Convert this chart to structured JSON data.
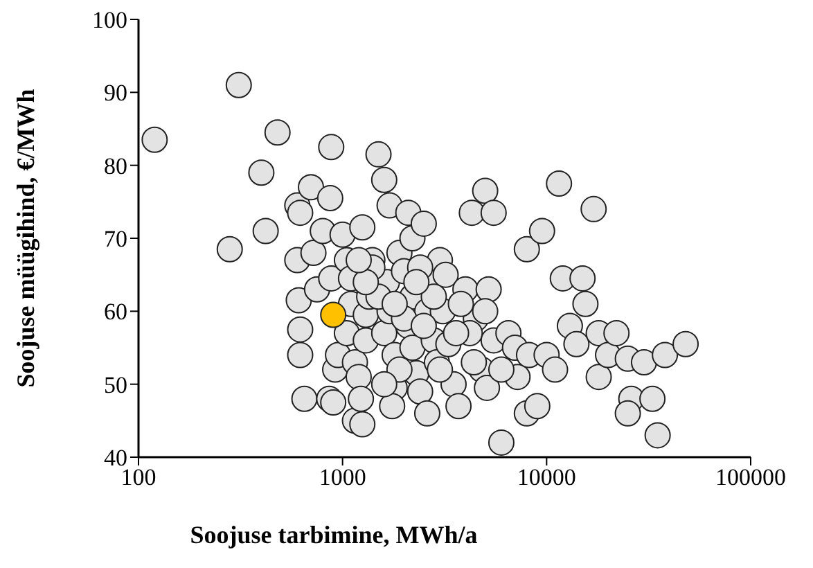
{
  "chart_data": {
    "type": "scatter",
    "xlabel": "Soojuse tarbimine, MWh/a",
    "ylabel": "Soojuse müügihind, €/MWh",
    "log": "x",
    "xlim": [
      100,
      100000
    ],
    "xticks": [
      100,
      1000,
      10000,
      100000
    ],
    "ylim": [
      40,
      100
    ],
    "yticks": [
      40,
      50,
      60,
      70,
      80,
      90,
      100
    ],
    "grid": false,
    "marker": "circle",
    "series": [
      {
        "color": "#e3e3e3",
        "x": [
          120,
          280,
          310,
          400,
          420,
          480,
          600,
          620,
          600,
          610,
          620,
          620,
          650,
          700,
          720,
          750,
          800,
          880,
          870,
          880,
          860,
          900,
          920,
          950,
          1000,
          1050,
          1100,
          1050,
          1100,
          1150,
          1200,
          1150,
          1250,
          1230,
          1250,
          1300,
          1300,
          1350,
          1400,
          1500,
          1600,
          1700,
          1650,
          1600,
          1700,
          1800,
          1800,
          1750,
          1900,
          2000,
          2100,
          2200,
          2200,
          2100,
          2200,
          2300,
          2400,
          2600,
          2500,
          2700,
          2600,
          2800,
          2900,
          3000,
          3200,
          3100,
          3300,
          3500,
          3700,
          4000,
          4300,
          4500,
          4200,
          4800,
          5000,
          5500,
          5200,
          5100,
          5500,
          6000,
          6500,
          7000,
          7200,
          8000,
          8200,
          8000,
          9000,
          9500,
          10000,
          11000,
          11500,
          12000,
          13000,
          14000,
          15000,
          15500,
          17000,
          18000,
          18000,
          20000,
          22000,
          25000,
          26000,
          25000,
          30000,
          33000,
          35000,
          38000,
          48000,
          1400,
          1500,
          2000,
          2500,
          1900,
          1600,
          3000,
          2800,
          2400,
          3600,
          1800,
          1300,
          1200,
          2300,
          3800,
          6000,
          5000,
          4400
        ],
        "values": [
          83.5,
          68.5,
          91,
          79,
          71,
          84.5,
          74.5,
          73.5,
          67,
          61.5,
          57.5,
          54,
          48,
          77,
          68,
          63,
          71,
          82.5,
          75.5,
          64.5,
          48,
          47.5,
          52,
          54,
          70.5,
          67,
          64.5,
          57,
          61,
          53,
          51,
          45,
          44.5,
          48,
          71.5,
          59.5,
          56,
          62,
          67,
          81.5,
          78,
          74.5,
          64,
          57,
          60,
          54,
          49.5,
          47,
          68,
          65.5,
          73.5,
          70,
          62,
          58,
          55,
          51.5,
          49,
          46,
          72,
          64,
          60,
          56,
          53,
          67,
          65,
          60,
          55.5,
          50,
          47,
          63,
          73.5,
          59,
          57,
          52,
          76.5,
          73.5,
          63,
          49.5,
          56,
          42,
          57,
          55,
          51,
          68.5,
          54,
          46,
          47,
          71,
          54,
          52,
          77.5,
          64.5,
          58,
          55.5,
          64.5,
          61,
          74,
          51,
          57,
          54,
          57,
          53.5,
          48,
          46,
          53,
          48,
          43,
          54,
          55.5,
          66,
          62,
          59,
          58,
          52,
          50,
          52,
          62,
          66,
          57,
          61,
          64,
          67,
          64,
          61,
          52,
          60,
          53
        ]
      },
      {
        "color": "#ffc000",
        "x": [
          900
        ],
        "values": [
          59.5
        ]
      }
    ]
  }
}
